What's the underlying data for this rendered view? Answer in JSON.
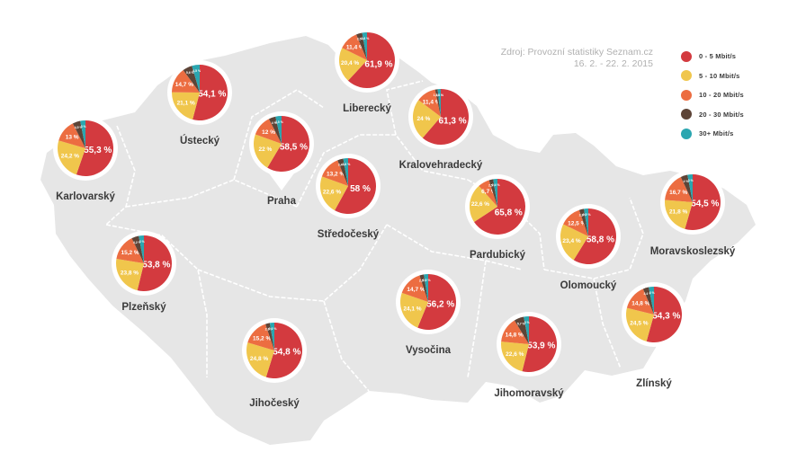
{
  "source": {
    "line1": "Zdroj: Provozní statistiky Seznam.cz",
    "line2": "16. 2. - 22. 2. 2015"
  },
  "legend": [
    {
      "label": "0 - 5 Mbit/s",
      "color": "#d33a3f"
    },
    {
      "label": "5 - 10 Mbit/s",
      "color": "#f0c64c"
    },
    {
      "label": "10 - 20 Mbit/s",
      "color": "#ec6d41"
    },
    {
      "label": "20 - 30 Mbit/s",
      "color": "#5d4437"
    },
    {
      "label": "30+ Mbit/s",
      "color": "#2aa6b0"
    }
  ],
  "chart_data": {
    "type": "pie",
    "categories": [
      "0 - 5 Mbit/s",
      "5 - 10 Mbit/s",
      "10 - 20 Mbit/s",
      "20 - 30 Mbit/s",
      "30+ Mbit/s"
    ],
    "regions": [
      {
        "name": "Karlovarský",
        "values": [
          55.3,
          24.2,
          13,
          4.5,
          3
        ]
      },
      {
        "name": "Ústecký",
        "values": [
          54.1,
          21.1,
          14.7,
          5.6,
          4.5
        ]
      },
      {
        "name": "Praha",
        "values": [
          58.5,
          22,
          12,
          4,
          3.5
        ]
      },
      {
        "name": "Liberecký",
        "values": [
          61.9,
          20.4,
          11.4,
          3.5,
          2.8
        ]
      },
      {
        "name": "Kralovehradecký",
        "values": [
          61.3,
          24,
          11.4,
          1.5,
          1.8
        ]
      },
      {
        "name": "Středočeský",
        "values": [
          58,
          22.6,
          13.2,
          3.4,
          2.8
        ]
      },
      {
        "name": "Pardubický",
        "values": [
          65.8,
          22.6,
          6.7,
          2.5,
          2.4
        ]
      },
      {
        "name": "Plzeňský",
        "values": [
          53.8,
          23.8,
          15.2,
          4.2,
          3
        ]
      },
      {
        "name": "Olomoucký",
        "values": [
          58.8,
          23.4,
          12.5,
          2.8,
          2.5
        ]
      },
      {
        "name": "Moravskoslezský",
        "values": [
          54.5,
          21.8,
          16.7,
          4,
          3
        ]
      },
      {
        "name": "Vysočina",
        "values": [
          56.2,
          24.1,
          14.7,
          2.5,
          2.5
        ]
      },
      {
        "name": "Jihočeský",
        "values": [
          54.8,
          24.8,
          15.2,
          2.6,
          2.6
        ]
      },
      {
        "name": "Jihomoravský",
        "values": [
          53.9,
          22.6,
          14.8,
          5.7,
          3
        ]
      },
      {
        "name": "Zlínský",
        "values": [
          54.3,
          24.5,
          14.8,
          3.4,
          3
        ]
      }
    ]
  }
}
